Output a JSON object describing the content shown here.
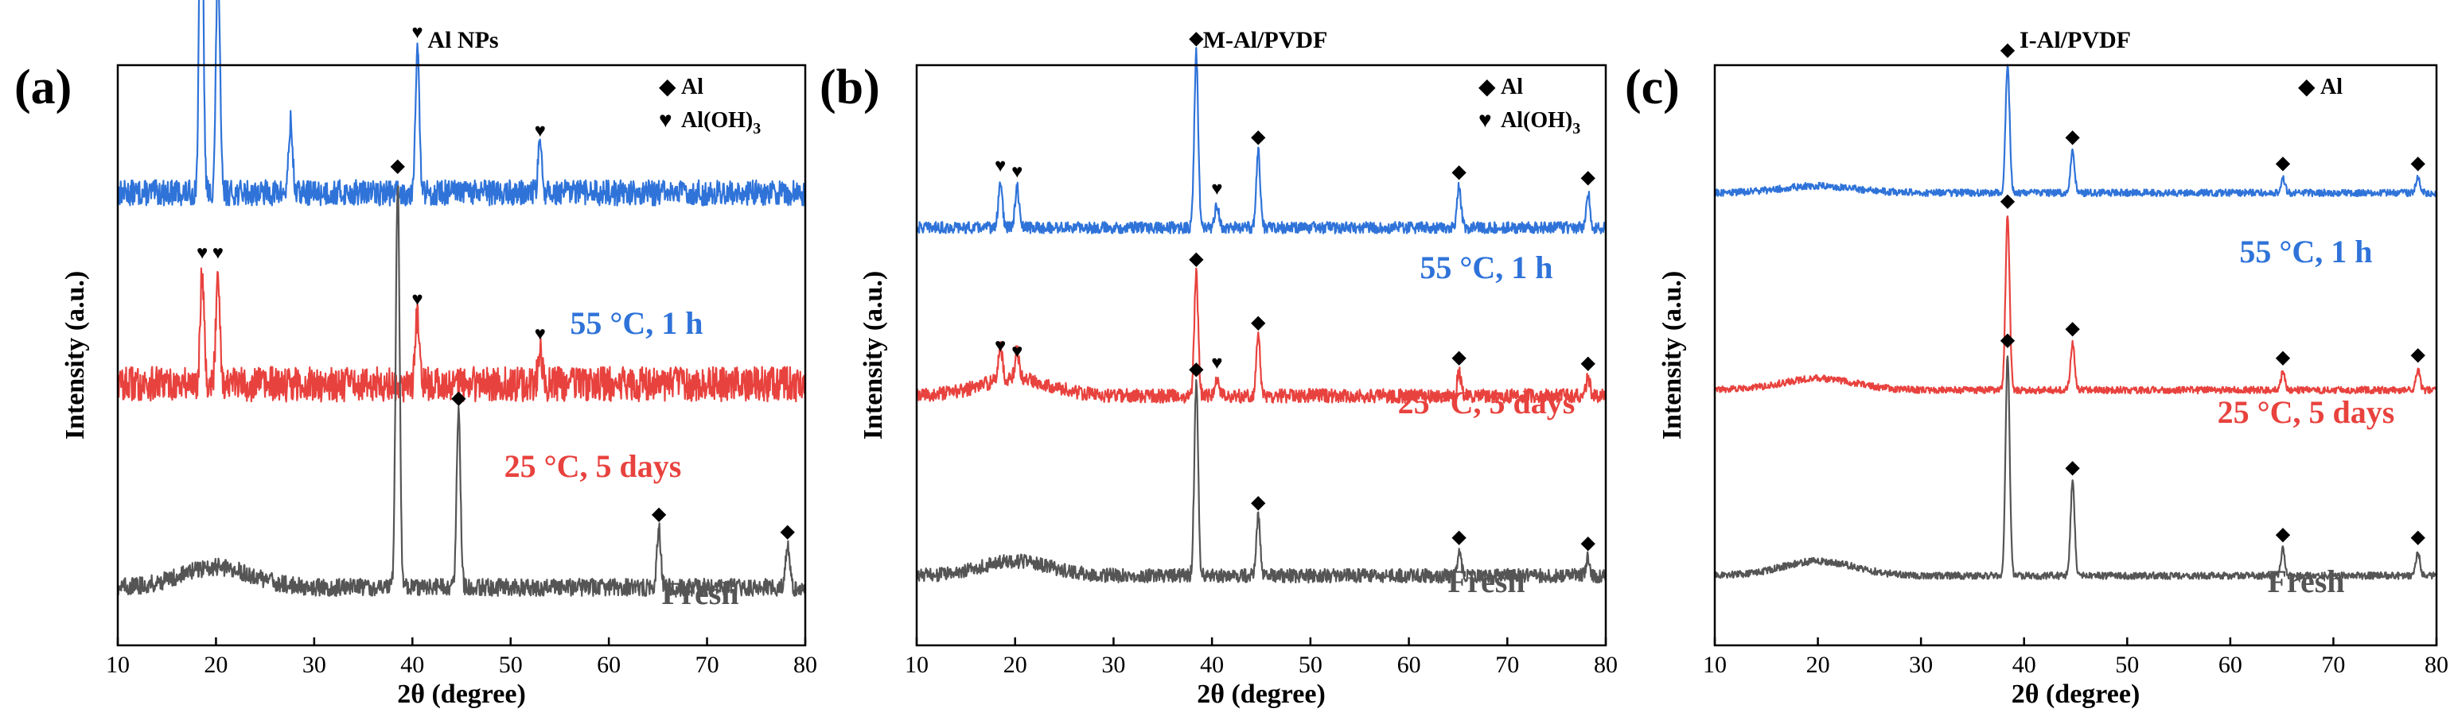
{
  "colors": {
    "fresh": "#555555",
    "storage25": "#e8423e",
    "heat55": "#2f73d9",
    "axis": "#000000"
  },
  "chart_data": [
    {
      "type": "line",
      "panel_label": "(a)",
      "title": "Al NPs",
      "xlabel": "2θ (degree)",
      "ylabel": "Intensity (a.u.)",
      "xlim": [
        10,
        80
      ],
      "xticks": [
        "10",
        "20",
        "30",
        "40",
        "50",
        "60",
        "70",
        "80"
      ],
      "legend": [
        {
          "symbol": "◆",
          "label": "Al",
          "sub": ""
        },
        {
          "symbol": "♥",
          "label": "Al(OH)",
          "sub": "3"
        }
      ],
      "series": [
        {
          "name": "55 °C, 1 h",
          "color_key": "heat55",
          "baseline": 0.78,
          "noise": 0.022,
          "hump": 0.0,
          "peaks": [
            {
              "x": 18.5,
              "h": 0.62,
              "marker": "♥"
            },
            {
              "x": 20.2,
              "h": 0.4,
              "marker": "♥"
            },
            {
              "x": 27.6,
              "h": 0.12,
              "marker": ""
            },
            {
              "x": 40.5,
              "h": 0.25,
              "marker": "♥"
            },
            {
              "x": 53.0,
              "h": 0.08,
              "marker": "♥"
            }
          ]
        },
        {
          "name": "25 °C, 5 days",
          "color_key": "storage25",
          "baseline": 0.45,
          "noise": 0.03,
          "hump": 0.0,
          "peaks": [
            {
              "x": 18.6,
              "h": 0.2,
              "marker": "♥"
            },
            {
              "x": 20.2,
              "h": 0.2,
              "marker": "♥"
            },
            {
              "x": 40.5,
              "h": 0.12,
              "marker": "♥"
            },
            {
              "x": 53.0,
              "h": 0.06,
              "marker": "♥"
            }
          ]
        },
        {
          "name": "Fresh",
          "color_key": "fresh",
          "baseline": 0.1,
          "noise": 0.015,
          "hump": 0.035,
          "peaks": [
            {
              "x": 38.5,
              "h": 0.7,
              "marker": "◆"
            },
            {
              "x": 44.7,
              "h": 0.3,
              "marker": "◆"
            },
            {
              "x": 65.1,
              "h": 0.1,
              "marker": "◆"
            },
            {
              "x": 78.2,
              "h": 0.07,
              "marker": "◆"
            }
          ]
        }
      ]
    },
    {
      "type": "line",
      "panel_label": "(b)",
      "title": "M-Al/PVDF",
      "xlabel": "2θ (degree)",
      "ylabel": "Intensity (a.u.)",
      "xlim": [
        10,
        80
      ],
      "xticks": [
        "10",
        "20",
        "30",
        "40",
        "50",
        "60",
        "70",
        "80"
      ],
      "legend": [
        {
          "symbol": "◆",
          "label": "Al",
          "sub": ""
        },
        {
          "symbol": "♥",
          "label": "Al(OH)",
          "sub": "3"
        }
      ],
      "series": [
        {
          "name": "55 °C, 1 h",
          "color_key": "heat55",
          "baseline": 0.72,
          "noise": 0.01,
          "hump": 0.0,
          "peaks": [
            {
              "x": 18.5,
              "h": 0.08,
              "marker": "♥"
            },
            {
              "x": 20.2,
              "h": 0.07,
              "marker": "♥"
            },
            {
              "x": 38.4,
              "h": 0.3,
              "marker": "◆"
            },
            {
              "x": 40.5,
              "h": 0.04,
              "marker": "♥"
            },
            {
              "x": 44.7,
              "h": 0.13,
              "marker": "◆"
            },
            {
              "x": 65.1,
              "h": 0.07,
              "marker": "◆"
            },
            {
              "x": 78.2,
              "h": 0.06,
              "marker": "◆"
            }
          ]
        },
        {
          "name": "25 °C, 5 days",
          "color_key": "storage25",
          "baseline": 0.43,
          "noise": 0.012,
          "hump": 0.03,
          "peaks": [
            {
              "x": 18.5,
              "h": 0.06,
              "marker": "♥"
            },
            {
              "x": 20.2,
              "h": 0.05,
              "marker": "♥"
            },
            {
              "x": 38.4,
              "h": 0.21,
              "marker": "◆"
            },
            {
              "x": 40.5,
              "h": 0.03,
              "marker": "♥"
            },
            {
              "x": 44.7,
              "h": 0.1,
              "marker": "◆"
            },
            {
              "x": 65.1,
              "h": 0.04,
              "marker": "◆"
            },
            {
              "x": 78.2,
              "h": 0.03,
              "marker": "◆"
            }
          ]
        },
        {
          "name": "Fresh",
          "color_key": "fresh",
          "baseline": 0.12,
          "noise": 0.012,
          "hump": 0.025,
          "peaks": [
            {
              "x": 38.4,
              "h": 0.33,
              "marker": "◆"
            },
            {
              "x": 44.7,
              "h": 0.1,
              "marker": "◆"
            },
            {
              "x": 65.1,
              "h": 0.04,
              "marker": "◆"
            },
            {
              "x": 78.2,
              "h": 0.03,
              "marker": "◆"
            }
          ]
        }
      ]
    },
    {
      "type": "line",
      "panel_label": "(c)",
      "title": "I-Al/PVDF",
      "xlabel": "2θ (degree)",
      "ylabel": "Intensity (a.u.)",
      "xlim": [
        10,
        80
      ],
      "xticks": [
        "10",
        "20",
        "30",
        "40",
        "50",
        "60",
        "70",
        "80"
      ],
      "legend": [
        {
          "symbol": "◆",
          "label": "Al",
          "sub": ""
        }
      ],
      "series": [
        {
          "name": "55 °C, 1 h",
          "color_key": "heat55",
          "baseline": 0.78,
          "noise": 0.006,
          "hump": 0.012,
          "peaks": [
            {
              "x": 38.4,
              "h": 0.22,
              "marker": "◆"
            },
            {
              "x": 44.7,
              "h": 0.07,
              "marker": "◆"
            },
            {
              "x": 65.1,
              "h": 0.025,
              "marker": "◆"
            },
            {
              "x": 78.2,
              "h": 0.025,
              "marker": "◆"
            }
          ]
        },
        {
          "name": "25 °C, 5 days",
          "color_key": "storage25",
          "baseline": 0.44,
          "noise": 0.006,
          "hump": 0.02,
          "peaks": [
            {
              "x": 38.4,
              "h": 0.3,
              "marker": "◆"
            },
            {
              "x": 44.7,
              "h": 0.08,
              "marker": "◆"
            },
            {
              "x": 65.1,
              "h": 0.03,
              "marker": "◆"
            },
            {
              "x": 78.2,
              "h": 0.035,
              "marker": "◆"
            }
          ]
        },
        {
          "name": "Fresh",
          "color_key": "fresh",
          "baseline": 0.12,
          "noise": 0.006,
          "hump": 0.025,
          "peaks": [
            {
              "x": 38.4,
              "h": 0.38,
              "marker": "◆"
            },
            {
              "x": 44.7,
              "h": 0.16,
              "marker": "◆"
            },
            {
              "x": 65.1,
              "h": 0.045,
              "marker": "◆"
            },
            {
              "x": 78.2,
              "h": 0.04,
              "marker": "◆"
            }
          ]
        }
      ]
    }
  ]
}
